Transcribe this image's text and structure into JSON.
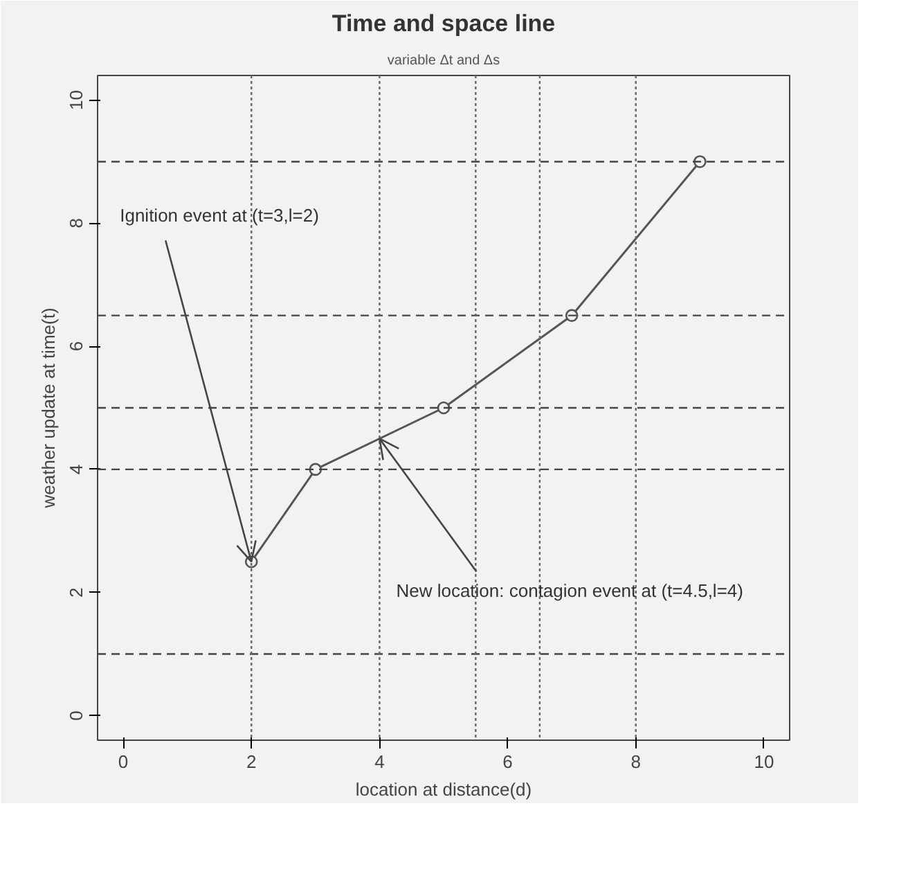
{
  "chart_data": {
    "type": "line",
    "title": "Time and space line",
    "subtitle": "variable Δt and Δs",
    "xlabel": "location at distance(d)",
    "ylabel": "weather update at time(t)",
    "series": [
      {
        "color": "#555555",
        "x": [
          2,
          3,
          5,
          7,
          9
        ],
        "values": [
          2.5,
          4,
          5,
          6.5,
          9
        ]
      }
    ],
    "xlim": [
      -0.4,
      10.4
    ],
    "ylim": [
      -0.4,
      10.4
    ],
    "xticks": [
      0,
      2,
      4,
      6,
      8,
      10
    ],
    "yticks": [
      0,
      2,
      4,
      6,
      8,
      10
    ],
    "grid": false,
    "marker": "circle",
    "line_style": "solid",
    "ref_lines": [
      {
        "axis": "y",
        "value": 1,
        "line_style": "dashed",
        "color": "#444444"
      },
      {
        "axis": "y",
        "value": 4,
        "line_style": "dashed",
        "color": "#444444"
      },
      {
        "axis": "y",
        "value": 5,
        "line_style": "dashed",
        "color": "#444444"
      },
      {
        "axis": "y",
        "value": 6.5,
        "line_style": "dashed",
        "color": "#444444"
      },
      {
        "axis": "y",
        "value": 9,
        "line_style": "dashed",
        "color": "#444444"
      },
      {
        "axis": "x",
        "value": 2,
        "line_style": "dotted",
        "color": "#666666"
      },
      {
        "axis": "x",
        "value": 4,
        "line_style": "dotted",
        "color": "#666666"
      },
      {
        "axis": "x",
        "value": 5.5,
        "line_style": "dotted",
        "color": "#666666"
      },
      {
        "axis": "x",
        "value": 6.5,
        "line_style": "dotted",
        "color": "#666666"
      },
      {
        "axis": "x",
        "value": 8,
        "line_style": "dotted",
        "color": "#666666"
      }
    ],
    "annotations": [
      {
        "text": "Ignition event at (t=3,l=2)",
        "x": 2,
        "y": 2.5
      },
      {
        "text": "New location: contagion event at (t=4.5,l=4)",
        "x": 4,
        "y": 4.5
      }
    ]
  }
}
